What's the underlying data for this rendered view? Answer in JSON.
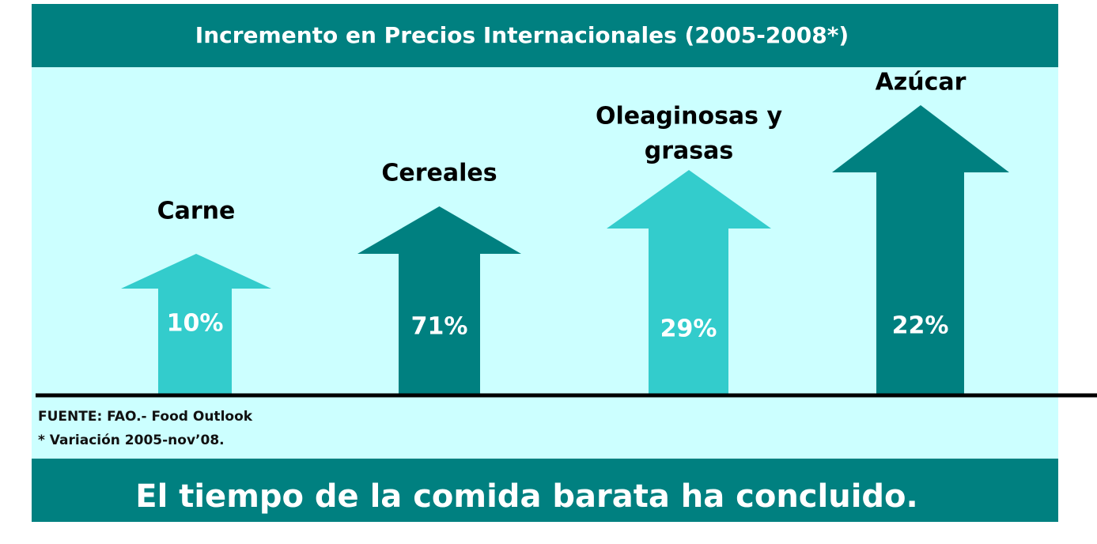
{
  "title": "Incremento en Precios Internacionales (2005-2008*)",
  "items": [
    {
      "label_lines": [
        "Carne"
      ],
      "value": "10%"
    },
    {
      "label_lines": [
        "Cereales"
      ],
      "value": "71%"
    },
    {
      "label_lines": [
        "Oleaginosas y",
        "grasas"
      ],
      "value": "29%"
    },
    {
      "label_lines": [
        "Azúcar"
      ],
      "value": "22%"
    }
  ],
  "source": "FUENTE: FAO.- Food Outlook",
  "note": "* Variación 2005-nov’08.",
  "footer": "El tiempo de la comida barata ha concluido."
}
